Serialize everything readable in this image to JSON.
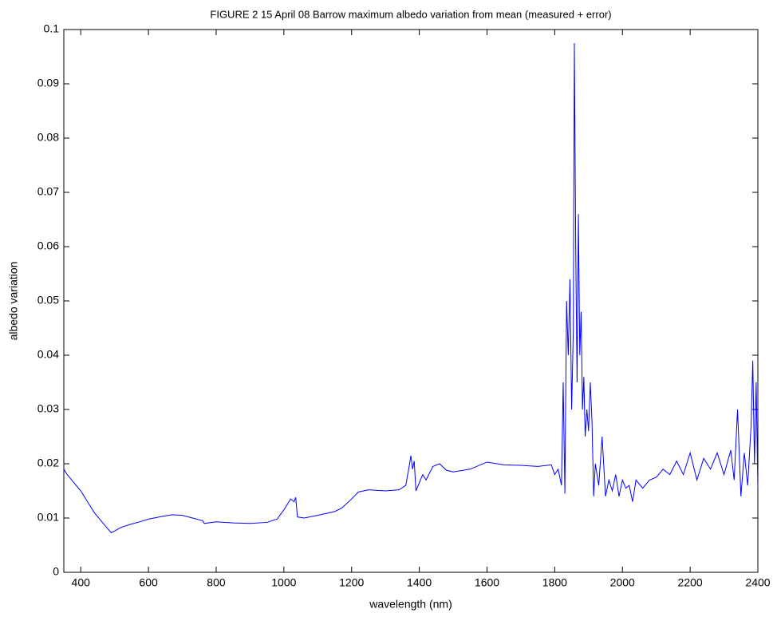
{
  "chart_data": {
    "type": "line",
    "title": "FIGURE 2  15 April 08 Barrow maximum albedo variation from mean (measured + error)",
    "x_label": "wavelength (nm)",
    "y_label": "albedo variation",
    "xlim": [
      350,
      2400
    ],
    "ylim": [
      0,
      0.1
    ],
    "xticks": [
      400,
      600,
      800,
      1000,
      1200,
      1400,
      1600,
      1800,
      2000,
      2200,
      2400
    ],
    "yticks": [
      0,
      0.01,
      0.02,
      0.03,
      0.04,
      0.05,
      0.06,
      0.07,
      0.08,
      0.09,
      0.1
    ],
    "grid": false,
    "series": [
      {
        "color": "#0000ff",
        "x": [
          350,
          360,
          380,
          400,
          420,
          440,
          460,
          480,
          490,
          500,
          520,
          550,
          580,
          600,
          640,
          670,
          700,
          730,
          760,
          765,
          800,
          850,
          900,
          950,
          980,
          1000,
          1010,
          1020,
          1030,
          1035,
          1040,
          1060,
          1100,
          1150,
          1170,
          1200,
          1220,
          1250,
          1300,
          1340,
          1360,
          1370,
          1375,
          1380,
          1385,
          1390,
          1400,
          1410,
          1420,
          1440,
          1460,
          1480,
          1500,
          1550,
          1600,
          1650,
          1700,
          1750,
          1790,
          1800,
          1810,
          1820,
          1825,
          1830,
          1835,
          1840,
          1845,
          1850,
          1855,
          1858,
          1862,
          1866,
          1870,
          1874,
          1878,
          1882,
          1886,
          1890,
          1895,
          1900,
          1905,
          1910,
          1915,
          1920,
          1930,
          1940,
          1950,
          1960,
          1970,
          1980,
          1990,
          2000,
          2010,
          2020,
          2030,
          2040,
          2060,
          2080,
          2100,
          2120,
          2140,
          2160,
          2180,
          2200,
          2220,
          2240,
          2260,
          2280,
          2300,
          2320,
          2330,
          2340,
          2350,
          2360,
          2370,
          2380,
          2385,
          2390,
          2395,
          2400
        ],
        "values": [
          0.019,
          0.018,
          0.0165,
          0.015,
          0.013,
          0.011,
          0.0095,
          0.008,
          0.0073,
          0.0076,
          0.0083,
          0.0089,
          0.0094,
          0.0098,
          0.0103,
          0.0106,
          0.0105,
          0.01,
          0.0095,
          0.009,
          0.0093,
          0.0091,
          0.009,
          0.0092,
          0.0098,
          0.0115,
          0.0125,
          0.0135,
          0.013,
          0.0138,
          0.0102,
          0.01,
          0.0105,
          0.0112,
          0.0118,
          0.0135,
          0.0148,
          0.0152,
          0.015,
          0.0152,
          0.016,
          0.0195,
          0.0215,
          0.019,
          0.0205,
          0.015,
          0.0165,
          0.018,
          0.017,
          0.0195,
          0.02,
          0.0188,
          0.0185,
          0.019,
          0.0203,
          0.0198,
          0.0197,
          0.0195,
          0.0198,
          0.018,
          0.019,
          0.016,
          0.035,
          0.0145,
          0.05,
          0.04,
          0.054,
          0.03,
          0.045,
          0.0975,
          0.06,
          0.035,
          0.066,
          0.04,
          0.048,
          0.03,
          0.036,
          0.025,
          0.03,
          0.026,
          0.035,
          0.028,
          0.014,
          0.02,
          0.016,
          0.025,
          0.014,
          0.017,
          0.015,
          0.018,
          0.014,
          0.017,
          0.0155,
          0.016,
          0.013,
          0.017,
          0.0155,
          0.017,
          0.0175,
          0.019,
          0.018,
          0.0205,
          0.018,
          0.022,
          0.017,
          0.021,
          0.019,
          0.022,
          0.018,
          0.0225,
          0.017,
          0.03,
          0.014,
          0.022,
          0.016,
          0.027,
          0.039,
          0.02,
          0.035,
          0.0155
        ]
      }
    ]
  }
}
